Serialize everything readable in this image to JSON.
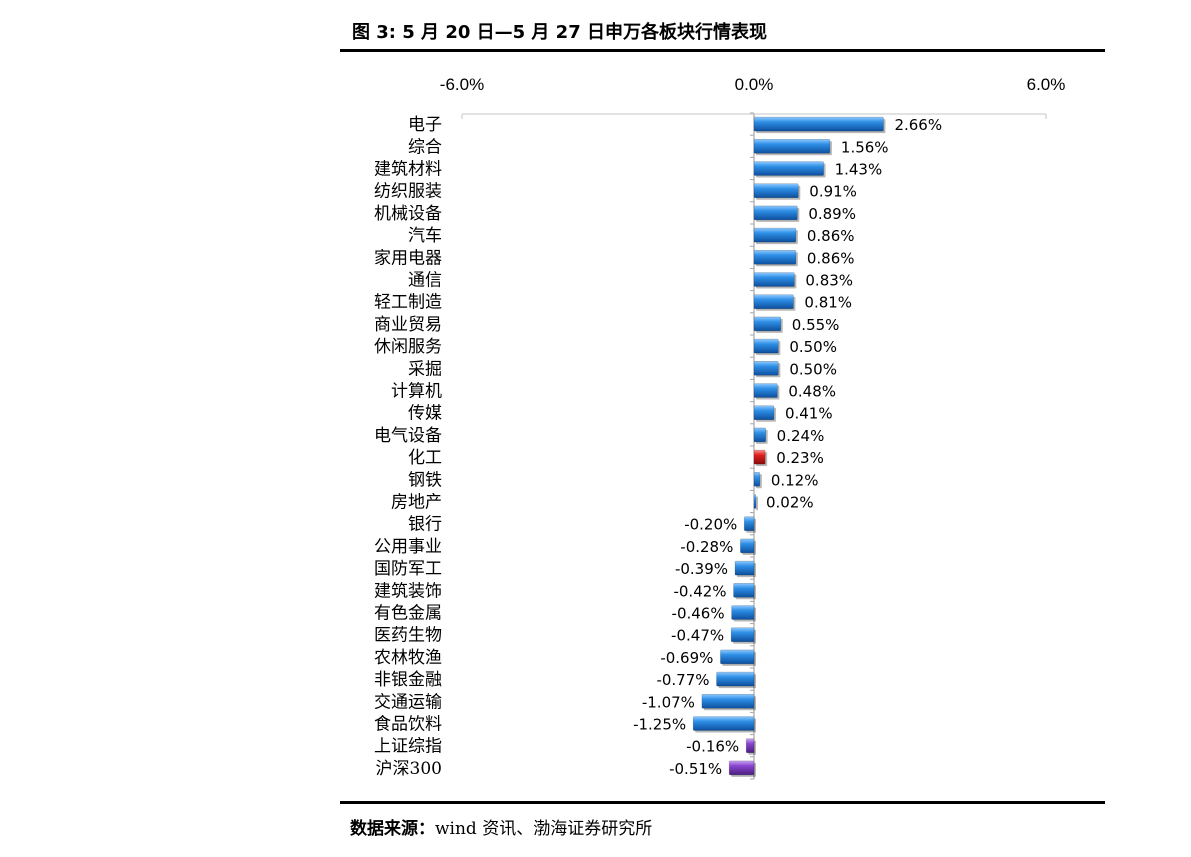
{
  "figure": {
    "title": "图 3:  5 月 20 日—5 月 27 日申万各板块行情表现",
    "source_label": "数据来源：",
    "source_text": "wind 资讯、渤海证券研究所"
  },
  "chart_data": {
    "type": "bar",
    "orientation": "horizontal",
    "title": "图 3:  5 月 20 日—5 月 27 日申万各板块行情表现",
    "xlabel": "",
    "ylabel": "",
    "xlim": [
      -6.0,
      6.0
    ],
    "x_ticks": [
      -6.0,
      0.0,
      6.0
    ],
    "x_tick_labels": [
      "-6.0%",
      "0.0%",
      "6.0%"
    ],
    "axis_position": "top",
    "grid": false,
    "legend": "none",
    "value_suffix": "%",
    "colors": {
      "default": "#1e7fd6",
      "highlight": "#d21818",
      "index": "#7e3bc4"
    },
    "categories": [
      "电子",
      "综合",
      "建筑材料",
      "纺织服装",
      "机械设备",
      "汽车",
      "家用电器",
      "通信",
      "轻工制造",
      "商业贸易",
      "休闲服务",
      "采掘",
      "计算机",
      "传媒",
      "电气设备",
      "化工",
      "钢铁",
      "房地产",
      "银行",
      "公用事业",
      "国防军工",
      "建筑装饰",
      "有色金属",
      "医药生物",
      "农林牧渔",
      "非银金融",
      "交通运输",
      "食品饮料",
      "上证综指",
      "沪深300"
    ],
    "values": [
      2.66,
      1.56,
      1.43,
      0.91,
      0.89,
      0.86,
      0.86,
      0.83,
      0.81,
      0.55,
      0.5,
      0.5,
      0.48,
      0.41,
      0.24,
      0.23,
      0.12,
      0.02,
      -0.2,
      -0.28,
      -0.39,
      -0.42,
      -0.46,
      -0.47,
      -0.69,
      -0.77,
      -1.07,
      -1.25,
      -0.16,
      -0.51
    ],
    "data_labels": [
      "2.66%",
      "1.56%",
      "1.43%",
      "0.91%",
      "0.89%",
      "0.86%",
      "0.86%",
      "0.83%",
      "0.81%",
      "0.55%",
      "0.50%",
      "0.50%",
      "0.48%",
      "0.41%",
      "0.24%",
      "0.23%",
      "0.12%",
      "0.02%",
      "-0.20%",
      "-0.28%",
      "-0.39%",
      "-0.42%",
      "-0.46%",
      "-0.47%",
      "-0.69%",
      "-0.77%",
      "-1.07%",
      "-1.25%",
      "-0.16%",
      "-0.51%"
    ],
    "bar_colors": [
      "default",
      "default",
      "default",
      "default",
      "default",
      "default",
      "default",
      "default",
      "default",
      "default",
      "default",
      "default",
      "default",
      "default",
      "default",
      "highlight",
      "default",
      "default",
      "default",
      "default",
      "default",
      "default",
      "default",
      "default",
      "default",
      "default",
      "default",
      "default",
      "index",
      "index"
    ]
  }
}
